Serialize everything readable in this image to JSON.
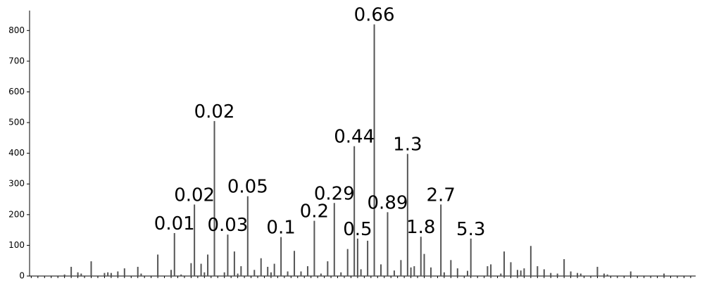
{
  "chart_data": {
    "type": "bar",
    "color": "#555555",
    "ylim": [
      0,
      865
    ],
    "yticks": [
      0,
      100,
      200,
      300,
      400,
      500,
      600,
      700,
      800
    ],
    "grid": false,
    "categories": [
      null,
      null,
      null,
      null,
      null,
      null,
      null,
      null,
      null,
      null,
      null,
      null,
      null,
      null,
      null,
      null,
      null,
      null,
      null,
      null,
      null,
      null,
      null,
      null,
      null,
      null,
      null,
      null,
      null,
      null,
      null,
      null,
      null,
      null,
      null,
      null,
      null,
      null,
      null,
      null,
      null,
      null,
      null,
      null,
      null,
      null,
      null,
      null,
      null,
      null,
      null,
      null,
      null,
      null,
      null,
      null,
      null,
      null,
      null,
      null,
      null,
      null,
      null,
      null,
      null,
      null,
      null,
      null,
      null,
      null,
      null,
      null,
      null,
      null,
      null,
      null,
      null,
      null,
      null,
      null,
      null,
      null,
      null,
      null,
      null,
      null,
      null,
      null,
      null,
      null,
      null,
      null,
      null,
      null,
      null,
      null,
      null,
      null,
      null,
      null,
      null,
      null,
      null,
      null,
      null,
      null,
      null,
      null,
      null,
      null,
      null,
      null,
      null,
      null,
      null,
      null,
      null,
      null,
      null,
      null,
      null,
      null,
      null,
      null,
      null,
      null,
      null,
      null,
      null,
      null,
      null,
      null,
      null,
      null,
      null,
      null,
      null,
      null,
      null,
      null,
      null,
      null,
      null,
      null,
      null,
      null,
      null,
      null,
      null,
      null,
      null,
      null,
      null,
      null,
      null,
      null,
      null,
      null,
      null,
      null,
      null,
      null,
      null,
      null,
      null,
      null,
      null,
      null,
      null,
      null,
      null,
      null,
      null,
      null,
      null,
      null,
      null,
      null,
      null,
      null,
      null,
      null,
      null,
      null,
      null,
      null,
      null,
      null,
      null,
      null,
      null,
      null,
      null,
      null,
      null,
      null,
      null,
      null,
      null,
      null
    ],
    "values": [
      0,
      0,
      0,
      0,
      0,
      0,
      0,
      0,
      0,
      0,
      5,
      0,
      30,
      0,
      12,
      8,
      0,
      0,
      48,
      0,
      0,
      0,
      10,
      12,
      10,
      0,
      15,
      0,
      25,
      0,
      0,
      0,
      30,
      8,
      0,
      0,
      0,
      0,
      70,
      0,
      0,
      0,
      20,
      140,
      0,
      5,
      0,
      0,
      42,
      233,
      0,
      40,
      12,
      70,
      0,
      505,
      0,
      0,
      12,
      135,
      0,
      80,
      8,
      32,
      0,
      260,
      0,
      20,
      0,
      58,
      0,
      30,
      12,
      40,
      0,
      127,
      0,
      15,
      0,
      82,
      0,
      15,
      0,
      32,
      0,
      180,
      0,
      8,
      0,
      48,
      0,
      238,
      0,
      12,
      0,
      88,
      0,
      423,
      122,
      22,
      0,
      115,
      0,
      820,
      0,
      38,
      0,
      208,
      0,
      18,
      0,
      52,
      0,
      398,
      28,
      32,
      0,
      128,
      72,
      0,
      28,
      0,
      0,
      233,
      12,
      0,
      52,
      0,
      25,
      0,
      0,
      17,
      122,
      0,
      0,
      0,
      0,
      32,
      38,
      0,
      0,
      8,
      80,
      0,
      45,
      0,
      20,
      18,
      25,
      0,
      98,
      0,
      32,
      0,
      22,
      0,
      10,
      0,
      8,
      0,
      55,
      0,
      15,
      0,
      10,
      8,
      0,
      0,
      0,
      0,
      30,
      0,
      8,
      5,
      0,
      0,
      0,
      0,
      0,
      0,
      15,
      0,
      0,
      0,
      0,
      0,
      0,
      0,
      0,
      0,
      8,
      0,
      0,
      0,
      0,
      0,
      0,
      0,
      0,
      0
    ],
    "annotations": [
      null,
      null,
      null,
      null,
      null,
      null,
      null,
      null,
      null,
      null,
      null,
      null,
      null,
      null,
      null,
      null,
      null,
      null,
      null,
      null,
      null,
      null,
      null,
      null,
      null,
      null,
      null,
      null,
      null,
      null,
      null,
      null,
      null,
      null,
      null,
      null,
      null,
      null,
      null,
      null,
      null,
      null,
      null,
      "0.01",
      null,
      null,
      null,
      null,
      null,
      "0.02",
      null,
      null,
      null,
      null,
      null,
      "0.02",
      null,
      null,
      null,
      "0.03",
      null,
      null,
      null,
      null,
      null,
      "0.05",
      null,
      null,
      null,
      null,
      null,
      null,
      null,
      null,
      null,
      "0.1",
      null,
      null,
      null,
      null,
      null,
      null,
      null,
      null,
      null,
      "0.2",
      null,
      null,
      null,
      null,
      null,
      "0.29",
      null,
      null,
      null,
      null,
      null,
      "0.44",
      "0.5",
      null,
      null,
      null,
      null,
      "0.66",
      null,
      null,
      null,
      "0.89",
      null,
      null,
      null,
      null,
      null,
      "1.3",
      null,
      null,
      null,
      "1.8",
      null,
      null,
      null,
      null,
      null,
      "2.7",
      null,
      null,
      null,
      null,
      null,
      null,
      null,
      null,
      "5.3",
      null,
      null,
      null,
      null,
      null,
      null,
      null,
      null,
      null,
      null,
      null,
      null,
      null,
      null,
      null,
      null,
      null,
      null,
      null,
      null,
      null,
      null,
      null,
      null,
      null,
      null,
      null,
      null,
      null,
      null,
      null,
      null,
      null,
      null,
      null,
      null,
      null,
      null,
      null,
      null,
      null,
      null,
      null,
      null,
      null,
      null,
      null,
      null,
      null,
      null,
      null,
      null,
      null,
      null,
      null,
      null,
      null,
      null,
      null,
      null,
      null,
      null,
      null,
      null,
      null,
      null,
      null
    ]
  }
}
